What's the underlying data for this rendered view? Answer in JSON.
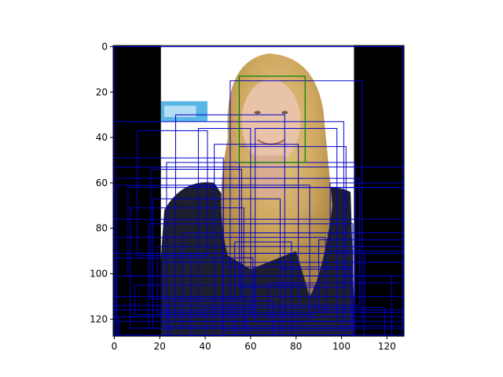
{
  "chart_data": {
    "type": "image",
    "title": "",
    "xlabel": "",
    "ylabel": "",
    "xlim": [
      -0.5,
      127.5
    ],
    "ylim": [
      127.5,
      -0.5
    ],
    "y_inverted": true,
    "xticks": [
      0,
      20,
      40,
      60,
      80,
      100,
      120
    ],
    "yticks": [
      0,
      20,
      40,
      60,
      80,
      100,
      120
    ],
    "grid": false,
    "image": {
      "extent": [
        0,
        127,
        0,
        127
      ],
      "black_border_x": [
        [
          -0.5,
          20.5
        ],
        [
          105.5,
          127.5
        ]
      ],
      "background_color": "#ffffff",
      "hair_color": "#d8b570",
      "skin_color": "#e9c3a8",
      "clothing_color": "#1d1f2e",
      "border_color": "#000000",
      "sign_color": "#59b7e8"
    },
    "detected_face_box": {
      "x0": 55,
      "y0": 13,
      "x1": 84,
      "y1": 51,
      "color": "#008000"
    },
    "candidate_boxes_color": "#0000cc",
    "candidate_boxes": [
      [
        0,
        0,
        127,
        127
      ],
      [
        0,
        0,
        127,
        91
      ],
      [
        51,
        15,
        109,
        121
      ],
      [
        27,
        30,
        75,
        121
      ],
      [
        0,
        33,
        101,
        127
      ],
      [
        10,
        37,
        41,
        92
      ],
      [
        62,
        36,
        98,
        121
      ],
      [
        0,
        49,
        48,
        127
      ],
      [
        44,
        43,
        81,
        123
      ],
      [
        0,
        53,
        127,
        119
      ],
      [
        16,
        54,
        56,
        111
      ],
      [
        23,
        51,
        106,
        127
      ],
      [
        0,
        58,
        108,
        114
      ],
      [
        1,
        61,
        86,
        121
      ],
      [
        6,
        62,
        127,
        101
      ],
      [
        48,
        62,
        127,
        123
      ],
      [
        17,
        67,
        73,
        124
      ],
      [
        7,
        71,
        57,
        124
      ],
      [
        0,
        76,
        127,
        128
      ],
      [
        15,
        78,
        105,
        124
      ],
      [
        30,
        82,
        127,
        124
      ],
      [
        1,
        84,
        93,
        119
      ],
      [
        19,
        88,
        127,
        117
      ],
      [
        34,
        91,
        110,
        127
      ],
      [
        0,
        93,
        61,
        116
      ],
      [
        21,
        95,
        127,
        123
      ],
      [
        48,
        97,
        104,
        125
      ],
      [
        1,
        101,
        122,
        127
      ],
      [
        9,
        105,
        88,
        118
      ],
      [
        0,
        110,
        127,
        128
      ],
      [
        24,
        112,
        70,
        127
      ],
      [
        40,
        115,
        119,
        127
      ],
      [
        2,
        119,
        58,
        127
      ],
      [
        68,
        104,
        127,
        121
      ],
      [
        53,
        86,
        78,
        127
      ],
      [
        90,
        85,
        127,
        116
      ],
      [
        95,
        60,
        127,
        90
      ],
      [
        55,
        44,
        102,
        106
      ],
      [
        37,
        36,
        60,
        119
      ],
      [
        73,
        98,
        105,
        127
      ]
    ]
  }
}
